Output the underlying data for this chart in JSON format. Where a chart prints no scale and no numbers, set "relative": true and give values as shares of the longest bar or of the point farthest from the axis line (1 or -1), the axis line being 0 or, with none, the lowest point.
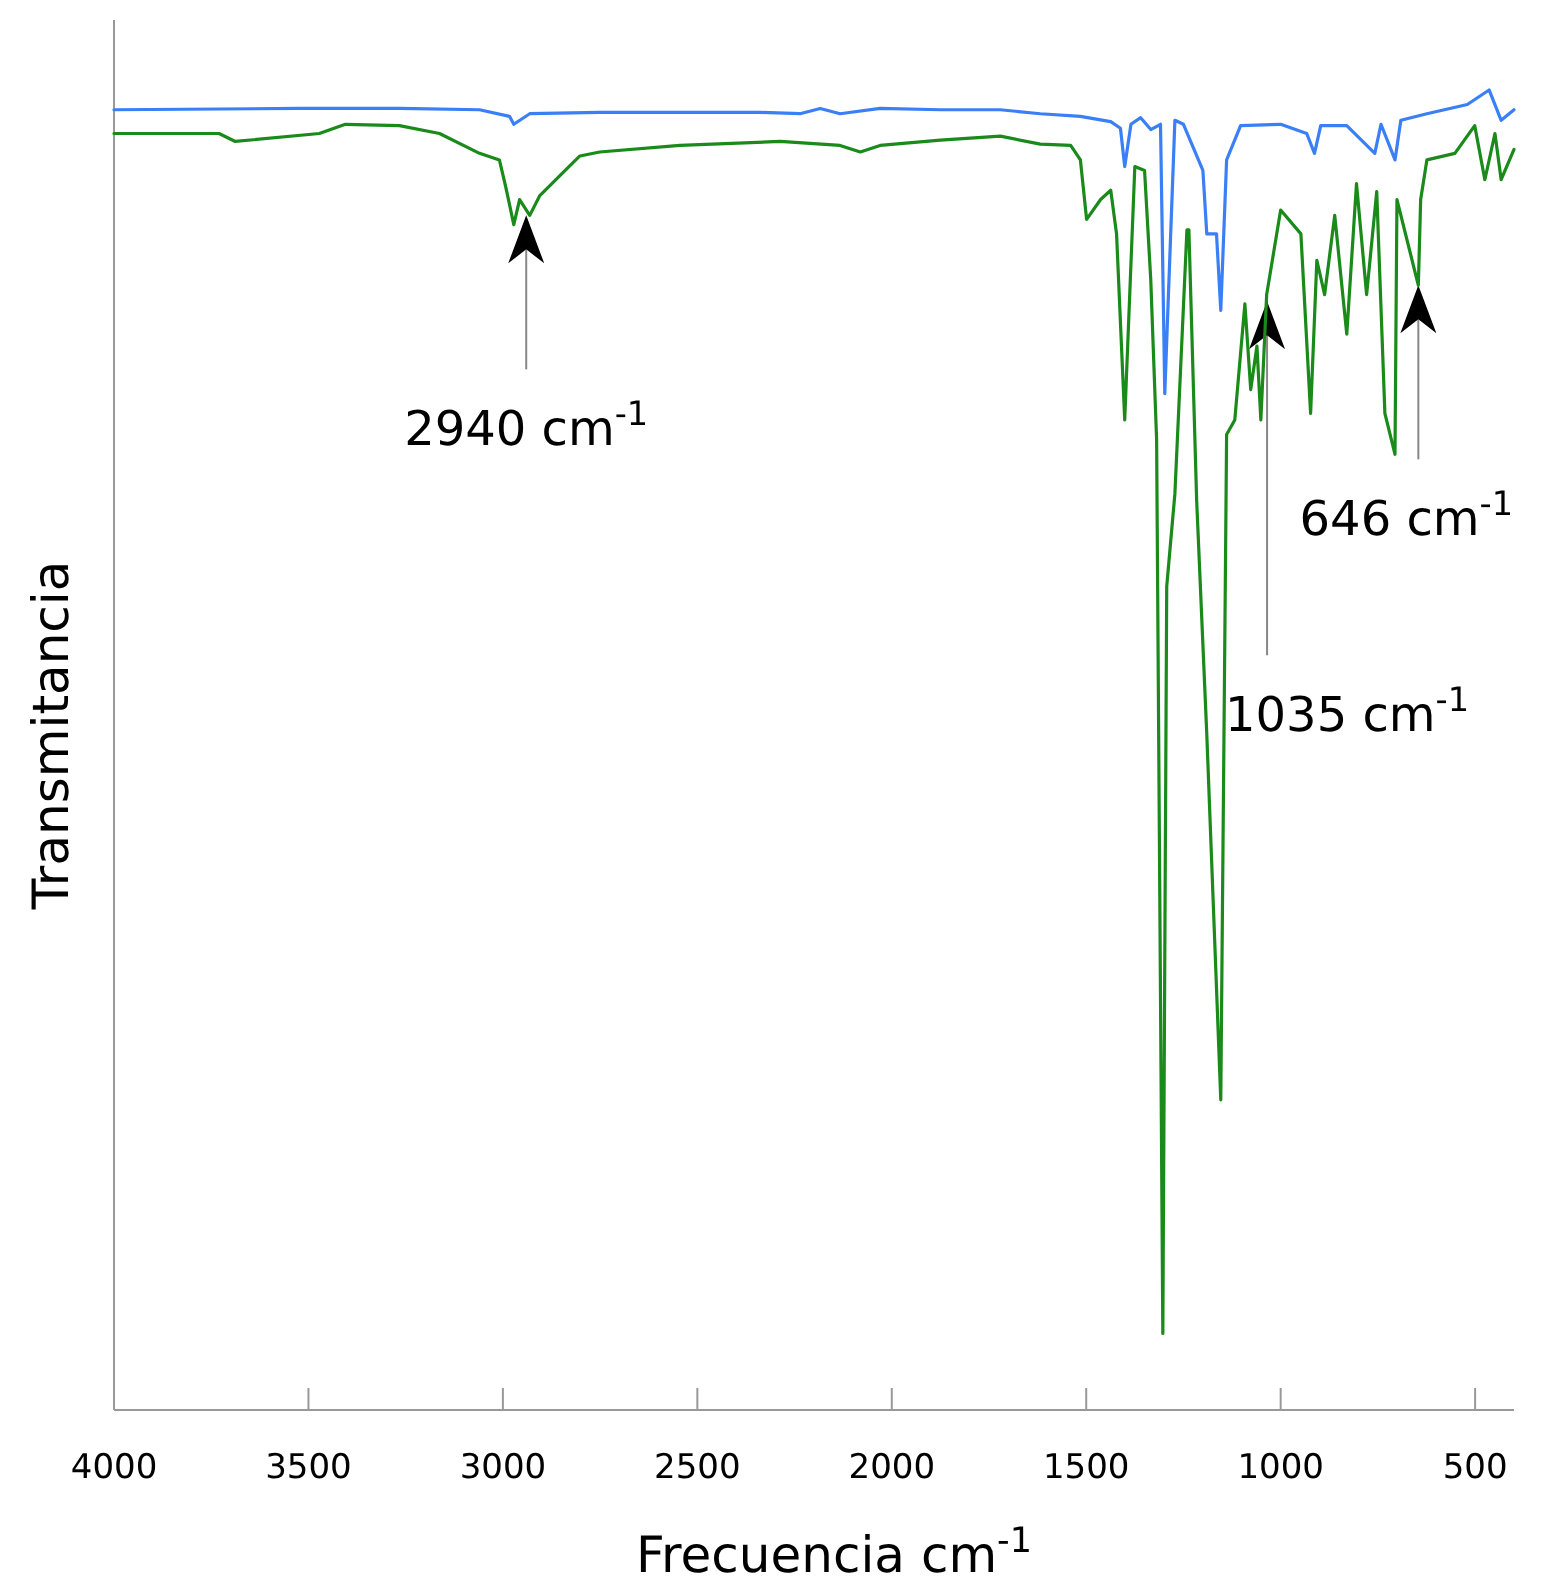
{
  "chart_data": {
    "type": "line",
    "relative": true,
    "xlabel": "Frecuencia cm$^{-1}$",
    "ylabel": "Transmitancia",
    "xlim": [
      4000,
      400
    ],
    "xticks": [
      4000,
      3500,
      3000,
      2500,
      2000,
      1500,
      1000,
      500
    ],
    "grid": false,
    "marker": "none",
    "line_style": "solid",
    "tick_labels": "x",
    "series": [
      {
        "color": "#3a7ff5",
        "x": [
          4000,
          3524,
          3266,
          3060,
          2983,
          2972,
          2931,
          2751,
          2339,
          2236,
          2184,
          2133,
          2030,
          1875,
          1721,
          1618,
          1515,
          1437,
          1412,
          1401,
          1385,
          1360,
          1334,
          1309,
          1298,
          1272,
          1250,
          1200,
          1190,
          1165,
          1154,
          1139,
          1103,
          1000,
          933,
          913,
          897,
          830,
          758,
          742,
          706,
          691,
          624,
          520,
          464,
          433,
          400
        ],
        "values": [
          0.985,
          0.986,
          0.986,
          0.985,
          0.98,
          0.974,
          0.982,
          0.983,
          0.983,
          0.982,
          0.986,
          0.982,
          0.986,
          0.985,
          0.985,
          0.982,
          0.98,
          0.976,
          0.971,
          0.942,
          0.974,
          0.979,
          0.97,
          0.974,
          0.77,
          0.977,
          0.974,
          0.939,
          0.891,
          0.891,
          0.833,
          0.947,
          0.973,
          0.974,
          0.967,
          0.952,
          0.973,
          0.973,
          0.952,
          0.974,
          0.947,
          0.977,
          0.982,
          0.989,
          1.0,
          0.977,
          0.985
        ]
      },
      {
        "color": "#1a8a1a",
        "x": [
          4000,
          3730,
          3688,
          3472,
          3405,
          3266,
          3163,
          3060,
          3009,
          2993,
          2972,
          2957,
          2931,
          2905,
          2854,
          2802,
          2751,
          2545,
          2287,
          2133,
          2081,
          2030,
          1875,
          1721,
          1618,
          1540,
          1515,
          1499,
          1463,
          1437,
          1422,
          1401,
          1375,
          1350,
          1334,
          1319,
          1303,
          1293,
          1272,
          1241,
          1236,
          1216,
          1190,
          1154,
          1139,
          1118,
          1092,
          1077,
          1061,
          1051,
          1036,
          1000,
          948,
          923,
          907,
          887,
          861,
          830,
          805,
          779,
          753,
          732,
          706,
          701,
          646,
          640,
          624,
          552,
          501,
          475,
          449,
          433,
          400
        ],
        "values": [
          0.967,
          0.967,
          0.961,
          0.967,
          0.974,
          0.973,
          0.967,
          0.952,
          0.947,
          0.927,
          0.898,
          0.917,
          0.905,
          0.92,
          0.935,
          0.95,
          0.953,
          0.958,
          0.961,
          0.958,
          0.953,
          0.958,
          0.962,
          0.965,
          0.959,
          0.958,
          0.947,
          0.902,
          0.917,
          0.924,
          0.891,
          0.75,
          0.942,
          0.939,
          0.856,
          0.735,
          0.058,
          0.624,
          0.694,
          0.894,
          0.894,
          0.689,
          0.512,
          0.235,
          0.739,
          0.75,
          0.838,
          0.773,
          0.806,
          0.75,
          0.845,
          0.909,
          0.891,
          0.755,
          0.871,
          0.845,
          0.905,
          0.815,
          0.929,
          0.845,
          0.923,
          0.755,
          0.724,
          0.917,
          0.852,
          0.917,
          0.947,
          0.952,
          0.973,
          0.932,
          0.967,
          0.932,
          0.955
        ]
      }
    ],
    "annotations": [
      {
        "text": "2940 cm$^{-1}$",
        "x": 2940,
        "y": 0.905
      },
      {
        "text": "1035 cm$^{-1}$",
        "x": 1035,
        "y": 0.84
      },
      {
        "text": "646 cm$^{-1}$",
        "x": 646,
        "y": 0.852
      }
    ]
  }
}
